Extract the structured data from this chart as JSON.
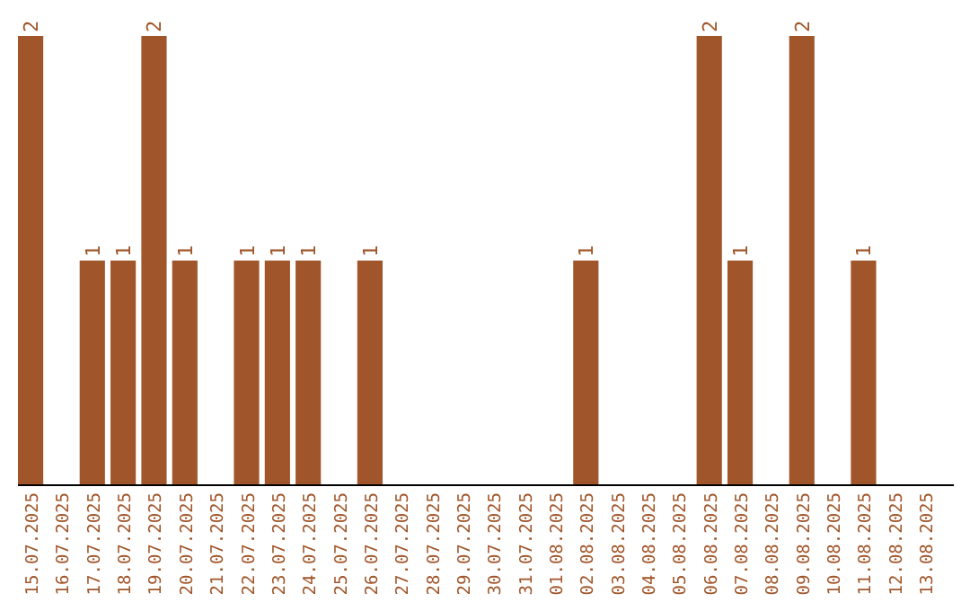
{
  "chart_data": {
    "type": "bar",
    "categories": [
      "15.07.2025",
      "16.07.2025",
      "17.07.2025",
      "18.07.2025",
      "19.07.2025",
      "20.07.2025",
      "21.07.2025",
      "22.07.2025",
      "23.07.2025",
      "24.07.2025",
      "25.07.2025",
      "26.07.2025",
      "27.07.2025",
      "28.07.2025",
      "29.07.2025",
      "30.07.2025",
      "31.07.2025",
      "01.08.2025",
      "02.08.2025",
      "03.08.2025",
      "04.08.2025",
      "05.08.2025",
      "06.08.2025",
      "07.08.2025",
      "08.08.2025",
      "09.08.2025",
      "10.08.2025",
      "11.08.2025",
      "12.08.2025",
      "13.08.2025"
    ],
    "values": [
      2,
      0,
      1,
      1,
      2,
      1,
      0,
      1,
      1,
      1,
      0,
      1,
      0,
      0,
      0,
      0,
      0,
      0,
      1,
      0,
      0,
      0,
      2,
      1,
      0,
      2,
      0,
      1,
      0,
      0
    ],
    "value_labels": [
      "2",
      null,
      "1",
      "1",
      "2",
      "1",
      null,
      "1",
      "1",
      "1",
      null,
      "1",
      null,
      null,
      null,
      null,
      null,
      null,
      "1",
      null,
      null,
      null,
      "2",
      "1",
      null,
      "2",
      null,
      "1",
      null,
      null
    ],
    "color": "#a0562a"
  }
}
